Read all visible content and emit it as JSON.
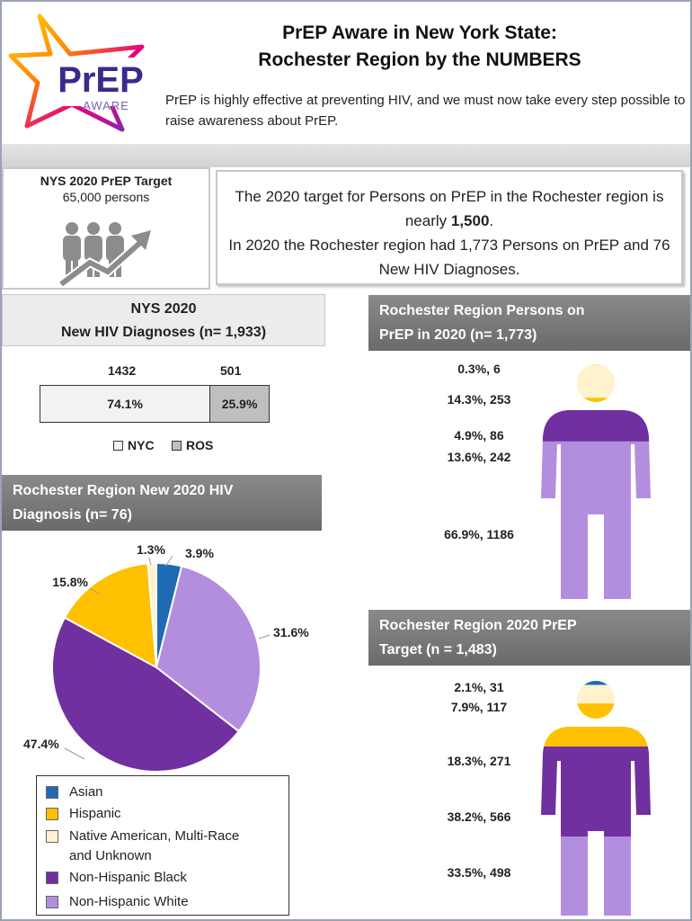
{
  "header": {
    "title_line1": "PrEP Aware in New York State:",
    "title_line2": "Rochester Region by the NUMBERS",
    "subtitle": "PrEP is highly effective at preventing HIV, and we must now take every step possible to raise awareness about PrEP.",
    "logo_main": "PrEP",
    "logo_sub": "AWARE"
  },
  "target": {
    "heading": "NYS 2020 PrEP Target",
    "value": "65,000 persons",
    "icon": "people-growth-icon"
  },
  "message": {
    "line1_pre": "The 2020 target for Persons on PrEP in the Rochester region is nearly ",
    "line1_bold": "1,500",
    "line1_post": ".",
    "line2": "In 2020 the Rochester region had 1,773 Persons on PrEP and 76 New HIV Diagnoses."
  },
  "colors": {
    "asian": "#1f6bb3",
    "hispanic": "#ffc000",
    "native": "#fff2cc",
    "black": "#7030a0",
    "white": "#b48ede",
    "nyc": "#f2f2f2",
    "ros": "#bfbfbf",
    "head_gray": "#7a7a7a"
  },
  "chart_data": [
    {
      "type": "bar",
      "title": "NYS 2020 New HIV Diagnoses (n= 1,933)",
      "title_line1": "NYS 2020",
      "title_line2": "New HIV Diagnoses (n= 1,933)",
      "categories": [
        "NYC",
        "ROS"
      ],
      "values": [
        1432,
        501
      ],
      "percents": [
        "74.1%",
        "25.9%"
      ],
      "counts": [
        "1432",
        "501"
      ],
      "legend": [
        "NYC",
        "ROS"
      ],
      "legend_placement": "bottom"
    },
    {
      "type": "pie",
      "title": "Rochester Region New 2020 HIV Diagnosis (n= 76)",
      "title_line1": "Rochester Region New 2020 HIV",
      "title_line2": "Diagnosis (n= 76)",
      "categories": [
        "Asian",
        "Hispanic",
        "Native American, Multi-Race and Unknown",
        "Non-Hispanic Black",
        "Non-Hispanic White"
      ],
      "values": [
        3.9,
        15.8,
        1.3,
        47.4,
        31.6
      ],
      "labels": [
        "3.9%",
        "15.8%",
        "1.3%",
        "47.4%",
        "31.6%"
      ],
      "legend_placement": "bottom-left",
      "legend_lines": [
        "Asian",
        "Hispanic",
        "Native American, Multi-Race",
        "and Unknown",
        "Non-Hispanic Black",
        "Non-Hispanic White"
      ]
    },
    {
      "type": "bar",
      "title": "Rochester Region Persons on PrEP in 2020 (n= 1,773)",
      "title_line1": "Rochester Region Persons on",
      "title_line2": "PrEP in 2020 (n= 1,773)",
      "categories": [
        "Asian",
        "Native American, Multi-Race and Unknown",
        "Hispanic",
        "Non-Hispanic Black",
        "Non-Hispanic White"
      ],
      "values": [
        6,
        253,
        86,
        242,
        1186
      ],
      "percents": [
        0.3,
        14.3,
        4.9,
        13.6,
        66.9
      ],
      "labels": [
        "0.3%, 6",
        "14.3%, 253",
        "4.9%, 86",
        "13.6%, 242",
        "66.9%, 1186"
      ]
    },
    {
      "type": "bar",
      "title": "Rochester Region 2020 PrEP Target (n = 1,483)",
      "title_line1": "Rochester Region 2020 PrEP",
      "title_line2": "Target (n = 1,483)",
      "categories": [
        "Asian",
        "Native American, Multi-Race and Unknown",
        "Hispanic",
        "Non-Hispanic Black",
        "Non-Hispanic White"
      ],
      "values": [
        31,
        117,
        271,
        566,
        498
      ],
      "percents": [
        2.1,
        7.9,
        18.3,
        38.2,
        33.5
      ],
      "labels": [
        "2.1%, 31",
        "7.9%, 117",
        "18.3%, 271",
        "38.2%, 566",
        "33.5%, 498"
      ]
    }
  ]
}
